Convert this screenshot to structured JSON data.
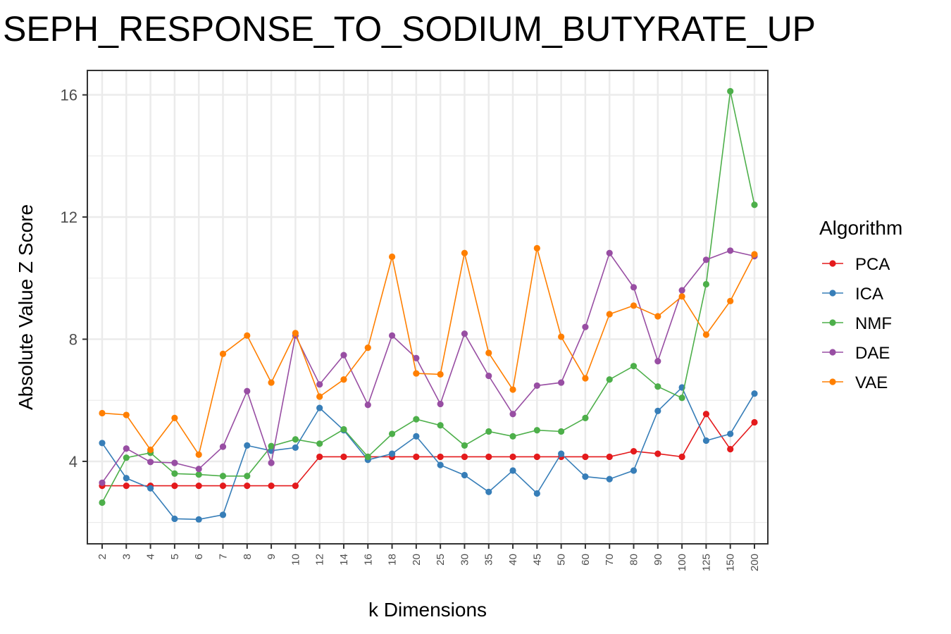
{
  "chart_data": {
    "type": "line",
    "title": "SEPH_RESPONSE_TO_SODIUM_BUTYRATE_UP",
    "xlabel": "k Dimensions",
    "ylabel": "Absolute Value Z Score",
    "ylim": [
      1.3,
      16.8
    ],
    "yticks": [
      4,
      8,
      12,
      16
    ],
    "grid": true,
    "legend_title": "Algorithm",
    "legend_position": "right",
    "categories": [
      "2",
      "3",
      "4",
      "5",
      "6",
      "7",
      "8",
      "9",
      "10",
      "12",
      "14",
      "16",
      "18",
      "20",
      "25",
      "30",
      "35",
      "40",
      "45",
      "50",
      "60",
      "70",
      "80",
      "90",
      "100",
      "125",
      "150",
      "200"
    ],
    "series": [
      {
        "name": "PCA",
        "color": "#E41A1C",
        "values": [
          3.2,
          3.2,
          3.2,
          3.2,
          3.2,
          3.2,
          3.2,
          3.2,
          3.2,
          4.15,
          4.15,
          4.15,
          4.15,
          4.15,
          4.15,
          4.15,
          4.15,
          4.15,
          4.15,
          4.15,
          4.15,
          4.15,
          4.33,
          4.25,
          4.15,
          5.55,
          4.4,
          5.28
        ]
      },
      {
        "name": "ICA",
        "color": "#377EB8",
        "values": [
          4.6,
          3.45,
          3.12,
          2.12,
          2.1,
          2.25,
          4.52,
          4.35,
          4.45,
          5.75,
          5.02,
          4.05,
          4.25,
          4.82,
          3.88,
          3.55,
          3.0,
          3.7,
          2.95,
          4.25,
          3.5,
          3.42,
          3.7,
          5.65,
          6.42,
          4.68,
          4.9,
          6.22
        ]
      },
      {
        "name": "NMF",
        "color": "#4DAF4A",
        "values": [
          2.65,
          4.12,
          4.28,
          3.6,
          3.57,
          3.52,
          3.52,
          4.5,
          4.72,
          4.58,
          5.05,
          4.15,
          4.9,
          5.38,
          5.18,
          4.52,
          4.98,
          4.82,
          5.02,
          4.98,
          5.42,
          6.68,
          7.12,
          6.45,
          6.08,
          9.8,
          16.12,
          12.4
        ]
      },
      {
        "name": "DAE",
        "color": "#984EA3",
        "values": [
          3.3,
          4.42,
          3.98,
          3.95,
          3.75,
          4.48,
          6.3,
          3.95,
          8.12,
          6.52,
          7.48,
          5.85,
          8.12,
          7.38,
          5.88,
          8.18,
          6.8,
          5.55,
          6.48,
          6.58,
          8.4,
          10.82,
          9.7,
          7.28,
          9.6,
          10.6,
          10.9,
          10.72
        ]
      },
      {
        "name": "VAE",
        "color": "#FF7F00",
        "values": [
          5.58,
          5.52,
          4.38,
          5.42,
          4.22,
          7.52,
          8.12,
          6.58,
          8.2,
          6.12,
          6.68,
          7.72,
          10.7,
          6.88,
          6.85,
          10.82,
          7.55,
          6.35,
          10.98,
          8.08,
          6.72,
          8.82,
          9.1,
          8.75,
          9.4,
          8.15,
          9.25,
          10.78
        ]
      }
    ]
  }
}
